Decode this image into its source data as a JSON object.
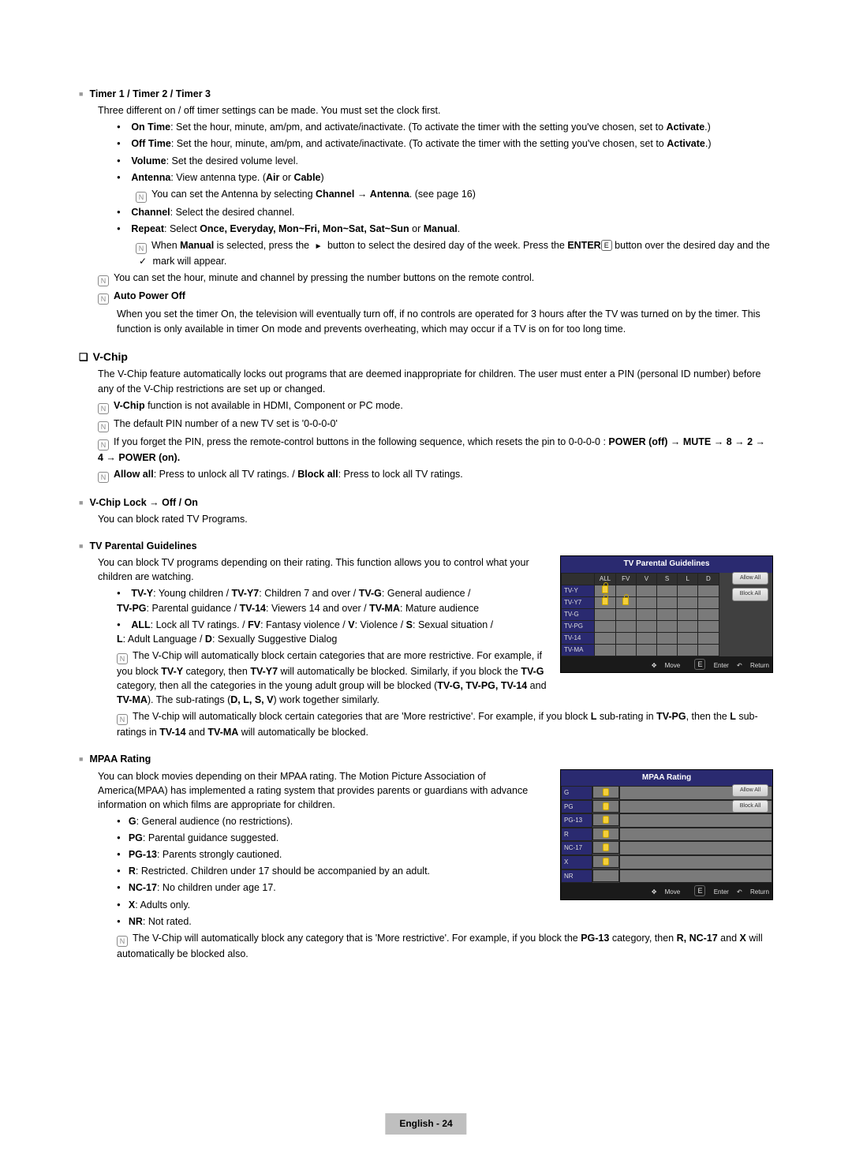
{
  "timer": {
    "heading": "Timer 1 / Timer 2 / Timer 3",
    "intro": "Three different on / off timer settings can be made. You must set the clock first.",
    "onTime": {
      "label": "On Time",
      "text": ": Set the hour, minute, am/pm, and activate/inactivate. (To activate the timer with the setting you've chosen, set to ",
      "activate": "Activate",
      "tail": ".)"
    },
    "offTime": {
      "label": "Off Time",
      "text": ": Set the hour, minute, am/pm, and activate/inactivate. (To activate the timer with the setting you've chosen, set to ",
      "activate": "Activate",
      "tail": ".)"
    },
    "volume": {
      "label": "Volume",
      "text": ": Set the desired volume level."
    },
    "antenna": {
      "label": "Antenna",
      "text": ": View antenna type. (",
      "air": "Air",
      "or": " or ",
      "cable": "Cable",
      "tail": ")"
    },
    "antennaNote": {
      "pre": "You can set the Antenna by selecting ",
      "b1": "Channel",
      "arrow": " → ",
      "b2": "Antenna",
      "tail": ". (see page 16)"
    },
    "channel": {
      "label": "Channel",
      "text": ": Select the desired channel."
    },
    "repeat": {
      "label": "Repeat",
      "text": ": Select ",
      "opts": "Once, Everyday, Mon~Fri, Mon~Sat, Sat~Sun",
      "or": " or ",
      "manual": "Manual",
      "tail": "."
    },
    "repeatNote": {
      "pre": "When ",
      "manual": "Manual",
      "mid1": " is selected, press the ",
      "mid2": " button to select the desired day of the week. Press the ",
      "enter": "ENTER",
      "mid3": " button over the desired day and the ",
      "mid4": " mark will appear."
    },
    "remoteNote": "You can set the hour, minute and channel by pressing the number buttons on the remote control.",
    "autoPowerOff": {
      "label": "Auto Power Off",
      "text": "When you set the timer On, the television will eventually turn off, if no controls are operated for 3 hours after the TV was turned on by the timer. This function is only available in timer On mode and prevents overheating, which may occur if a TV is on for too long time."
    }
  },
  "vchip": {
    "heading": "V-Chip",
    "intro": "The V-Chip feature automatically locks out programs that are deemed inappropriate for children. The user must enter a PIN (personal ID number) before any of the V-Chip restrictions are set up or changed.",
    "n1": {
      "b": "V-Chip",
      "t": " function is not available in HDMI, Component or PC mode."
    },
    "n2": "The default PIN number of a new TV set is '0-0-0-0'",
    "n3": {
      "pre": "If you forget the PIN, press the remote-control buttons in the following sequence, which resets the pin to 0-0-0-0 : ",
      "seq": "POWER (off) → MUTE → 8 → 2 → 4 → POWER (on)."
    },
    "n4": {
      "a": "Allow all",
      "at": ": Press to unlock all TV ratings. / ",
      "b": "Block all",
      "bt": ": Press to lock all TV ratings."
    },
    "lock": {
      "h": "V-Chip Lock → Off / On",
      "t": "You can block rated TV Programs."
    },
    "tvpg": {
      "h": "TV Parental Guidelines",
      "intro": "You can block TV programs depending on their rating. This function allows you to control what your children are watching.",
      "r1": {
        "a": "TV-Y",
        "at": ": Young children / ",
        "b": "TV-Y7",
        "bt": ": Children 7 and over / ",
        "c": "TV-G",
        "ct": ": General audience /"
      },
      "r1b": {
        "a": "TV-PG",
        "at": ": Parental guidance / ",
        "b": "TV-14",
        "bt": ": Viewers 14 and over / ",
        "c": "TV-MA",
        "ct": ": Mature audience"
      },
      "r2": {
        "a": "ALL",
        "at": ": Lock all TV ratings. / ",
        "b": "FV",
        "bt": ": Fantasy violence / ",
        "c": "V",
        "ct": ": Violence / ",
        "d": "S",
        "dt": ": Sexual situation /"
      },
      "r2b": {
        "a": "L",
        "at": ": Adult Language / ",
        "b": "D",
        "bt": ": Sexually Suggestive Dialog"
      },
      "note1": {
        "pre": "The V-Chip will automatically block certain categories that are more restrictive. For example, if you block ",
        "a": "TV-Y",
        "mid1": " category, then ",
        "b": "TV-Y7",
        "mid2": " will automatically be blocked. Similarly, if you block the ",
        "c": "TV-G",
        "mid3": " category, then all the categories in the young adult group will be blocked (",
        "d": "TV-G, TV-PG, TV-14",
        "and": " and ",
        "e": "TV-MA",
        "mid4": "). The sub-ratings (",
        "f": "D, L, S, V",
        "mid5": ") work together similarly."
      },
      "note2": {
        "pre": "The V-chip will automatically block certain categories that are 'More restrictive'. For example, if you block ",
        "a": "L",
        "mid1": " sub-rating in ",
        "b": "TV-PG",
        "mid2": ", then the ",
        "c": "L",
        "mid3": " sub-ratings in ",
        "d": "TV-14",
        "and": " and ",
        "e": "TV-MA",
        "tail": " will automatically be blocked."
      }
    },
    "mpaa": {
      "h": "MPAA Rating",
      "intro": "You can block movies depending on their MPAA rating. The Motion Picture Association of America(MPAA) has implemented a rating system that provides parents or guardians with advance information on which films are appropriate for children.",
      "g": {
        "a": "G",
        "t": ": General audience (no restrictions)."
      },
      "pg": {
        "a": "PG",
        "t": ": Parental guidance suggested."
      },
      "pg13": {
        "a": "PG-13",
        "t": ": Parents strongly cautioned."
      },
      "r": {
        "a": "R",
        "t": ": Restricted. Children under 17 should be accompanied by an adult."
      },
      "nc17": {
        "a": "NC-17",
        "t": ": No children under age 17."
      },
      "x": {
        "a": "X",
        "t": ": Adults only."
      },
      "nr": {
        "a": "NR",
        "t": ": Not rated."
      },
      "note": {
        "pre": "The V-Chip will automatically block any category that is 'More restrictive'. For example, if you block the ",
        "a": "PG-13",
        "mid": " category, then ",
        "b": "R, NC-17",
        "and": " and ",
        "c": "X",
        "tail": " will automatically be blocked also."
      }
    }
  },
  "figures": {
    "tvpg": {
      "title": "TV Parental Guidelines",
      "cols": [
        "ALL",
        "FV",
        "V",
        "S",
        "L",
        "D"
      ],
      "rows": [
        "TV-Y",
        "TV-Y7",
        "TV-G",
        "TV-PG",
        "TV-14",
        "TV-MA"
      ],
      "locks": {
        "TV-Y": [
          true,
          false,
          false,
          false,
          false,
          false
        ],
        "TV-Y7": [
          true,
          true,
          false,
          false,
          false,
          false
        ],
        "TV-G": [
          false,
          false,
          false,
          false,
          false,
          false
        ],
        "TV-PG": [
          false,
          false,
          false,
          false,
          false,
          false
        ],
        "TV-14": [
          false,
          false,
          false,
          false,
          false,
          false
        ],
        "TV-MA": [
          false,
          false,
          false,
          false,
          false,
          false
        ]
      },
      "btnAllow": "Allow All",
      "btnBlock": "Block All",
      "footMove": "Move",
      "footEnter": "Enter",
      "footReturn": "Return"
    },
    "mpaa": {
      "title": "MPAA Rating",
      "rows": [
        "G",
        "PG",
        "PG-13",
        "R",
        "NC-17",
        "X",
        "NR"
      ],
      "locks": [
        true,
        true,
        true,
        true,
        true,
        true,
        false
      ],
      "btnAllow": "Allow All",
      "btnBlock": "Block All",
      "footMove": "Move",
      "footEnter": "Enter",
      "footReturn": "Return"
    }
  },
  "footer": {
    "lang": "English - ",
    "page": "24"
  }
}
